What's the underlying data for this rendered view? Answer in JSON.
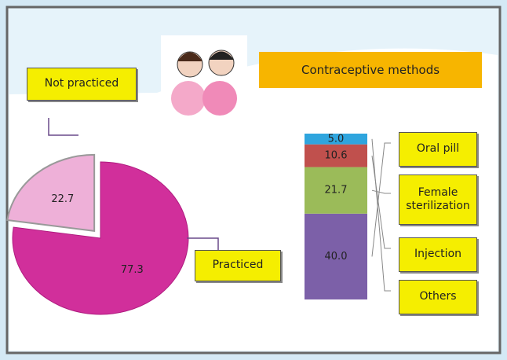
{
  "chart_data": [
    {
      "type": "pie",
      "categories": [
        "Practiced",
        "Not practiced"
      ],
      "values": [
        77.3,
        22.7
      ],
      "colors": [
        "#d12f9b",
        "#eeb0d8"
      ]
    },
    {
      "type": "stacked-bar",
      "title": "Contraceptive methods",
      "series": [
        {
          "name": "Oral pill",
          "color": "#7c60a8",
          "values": [
            40.0
          ],
          "value_labels": [
            "40.0"
          ]
        },
        {
          "name": "Female sterilization",
          "color": "#9bbb59",
          "values": [
            21.7
          ],
          "value_labels": [
            "21.7"
          ]
        },
        {
          "name": "Injection",
          "color": "#c0504d",
          "values": [
            10.6
          ],
          "value_labels": [
            "10.6"
          ]
        },
        {
          "name": "Others",
          "color": "#2fa5de",
          "values": [
            5.0
          ],
          "value_labels": [
            "5.0"
          ]
        }
      ]
    }
  ]
}
